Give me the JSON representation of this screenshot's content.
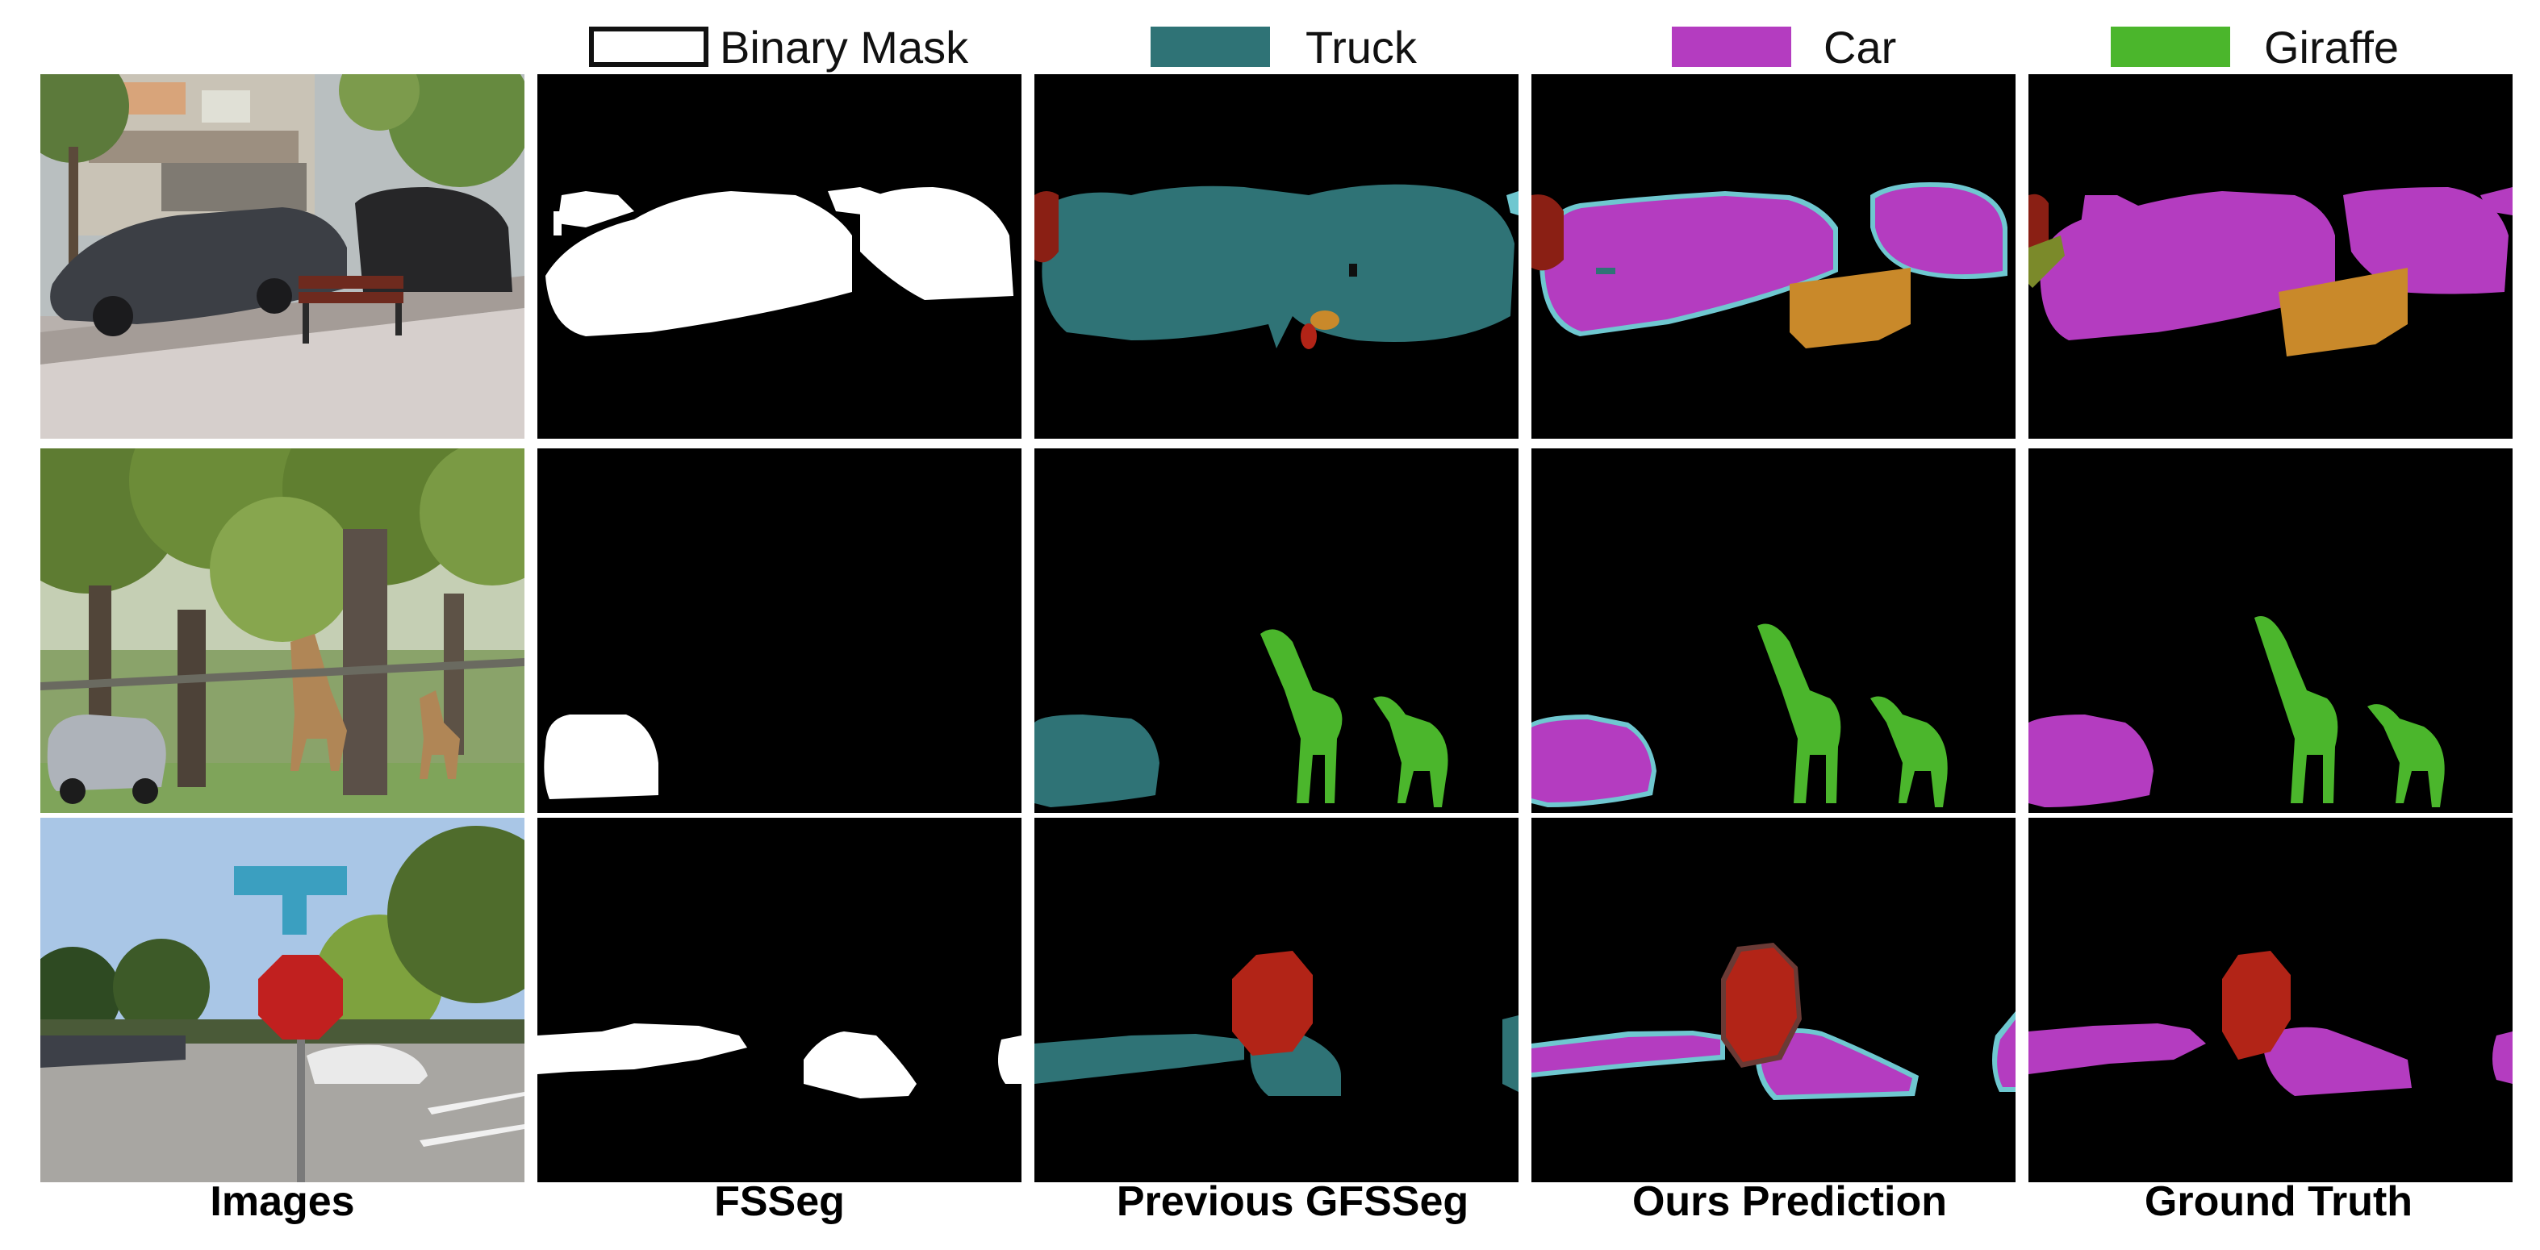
{
  "legend": {
    "binary_mask": {
      "label": "Binary Mask",
      "color": "#ffffff"
    },
    "truck": {
      "label": "Truck",
      "color": "#2f7376"
    },
    "car": {
      "label": "Car",
      "color": "#b43cc0"
    },
    "giraffe": {
      "label": "Giraffe",
      "color": "#4bb62c"
    }
  },
  "columns": [
    "Images",
    "FSSeg",
    "Previous GFSSeg",
    "Ours Prediction",
    "Ground Truth"
  ],
  "colors": {
    "truck": "#2f7376",
    "car": "#b43cc0",
    "giraffe": "#4bb62c",
    "bench": "#c9892a",
    "stop_sign": "#b22417",
    "person": "#8a1f14",
    "edge": "#6fc7d0",
    "background": "#000000"
  }
}
